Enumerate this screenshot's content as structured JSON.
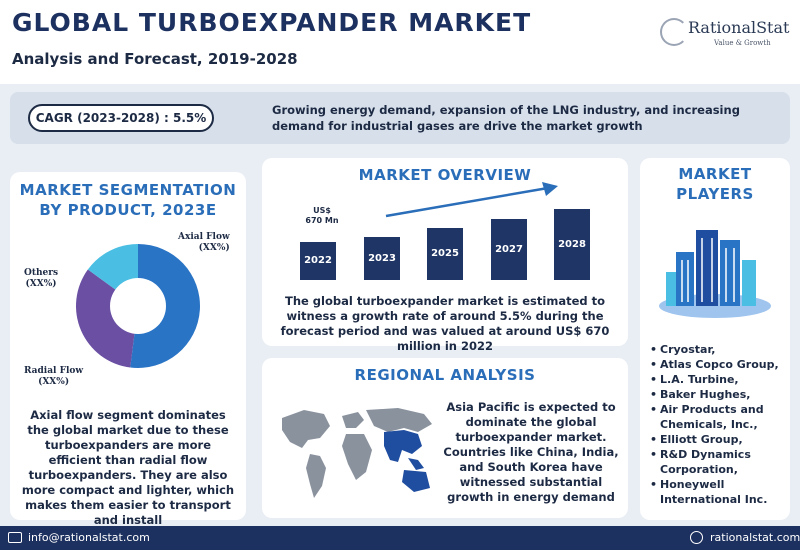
{
  "header": {
    "title": "GLOBAL TURBOEXPANDER MARKET",
    "subtitle": "Analysis and Forecast, 2019-2028",
    "logo_name": "RationalStat",
    "logo_tagline": "Value & Growth"
  },
  "cagr": {
    "label": "CAGR (2023-2028) : 5.5%",
    "description": "Growing energy demand, expansion of the LNG industry, and increasing demand for industrial gases are drive the market growth"
  },
  "segmentation": {
    "title_line1": "MARKET SEGMENTATION",
    "title_line2": "BY  PRODUCT, 2023E",
    "description": "Axial flow segment dominates the global market due to these turboexpanders are more efficient than radial flow turboexpanders. They are also more compact and lighter, which makes them easier to transport and install",
    "chart_data": {
      "type": "pie",
      "donut": true,
      "slices": [
        {
          "label": "Axial Flow",
          "value_text": "(XX%)",
          "share": 0.52,
          "color": "#2a74c5"
        },
        {
          "label": "Radial Flow",
          "value_text": "(XX%)",
          "share": 0.33,
          "color": "#6a4fa3"
        },
        {
          "label": "Others",
          "value_text": "(XX%)",
          "share": 0.15,
          "color": "#4bbfe3"
        }
      ]
    }
  },
  "overview": {
    "title": "MARKET OVERVIEW",
    "value_callout_line1": "US$",
    "value_callout_line2": "670 Mn",
    "description": "The  global turboexpander market is estimated to witness a growth rate of around 5.5% during the forecast period and was valued at around US$ 670 million in 2022",
    "chart_data": {
      "type": "bar",
      "categories": [
        "2022",
        "2023",
        "2025",
        "2027",
        "2028"
      ],
      "relative_heights": [
        0.46,
        0.52,
        0.63,
        0.74,
        0.87
      ],
      "color": "#1f3566",
      "trend_arrow": true
    }
  },
  "regional": {
    "title": "REGIONAL ANALYSIS",
    "description": "Asia Pacific is expected to dominate the global turboexpander market. Countries like China, India, and South Korea have witnessed substantial growth in energy demand"
  },
  "players": {
    "title_line1": "MARKET",
    "title_line2": "PLAYERS",
    "items": [
      "Cryostar,",
      "Atlas Copco Group,",
      "L.A. Turbine,",
      "Baker Hughes,",
      "Air Products and Chemicals, Inc.,",
      "Elliott Group,",
      "R&D Dynamics Corporation,",
      "Honeywell International Inc."
    ]
  },
  "footer": {
    "email": "info@rationalstat.com",
    "website": "rationalstat.com"
  }
}
